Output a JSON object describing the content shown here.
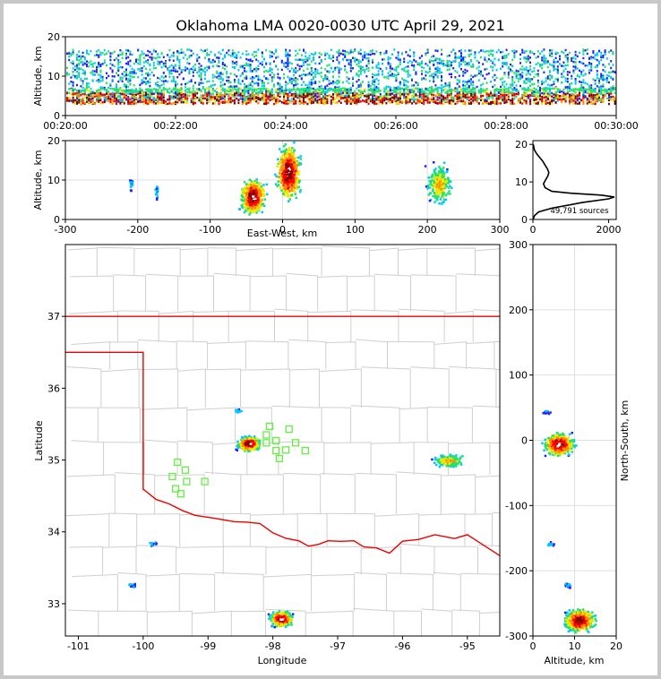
{
  "figure": {
    "title": "Oklahoma LMA 0020-0030 UTC April 29, 2021"
  },
  "chart_data": [
    {
      "id": "time_altitude",
      "type": "heatmap",
      "xlabel": "",
      "ylabel": "Altitude, km",
      "xticks": [
        "00:20:00",
        "00:22:00",
        "00:24:00",
        "00:26:00",
        "00:28:00",
        "00:30:00"
      ],
      "xlim_minutes": [
        20,
        30
      ],
      "ylim": [
        0,
        20
      ],
      "yticks": [
        0,
        10,
        20
      ],
      "grid": false
    },
    {
      "id": "ew_altitude",
      "type": "heatmap",
      "xlabel": "East-West, km",
      "ylabel": "Altitude, km",
      "xlim": [
        -300,
        300
      ],
      "xticks": [
        -300,
        -200,
        -100,
        0,
        100,
        200,
        300
      ],
      "ylim": [
        0,
        20
      ],
      "yticks": [
        0,
        10,
        20
      ],
      "grid": true,
      "clusters": [
        {
          "x": -210,
          "alt": 9,
          "density": "low"
        },
        {
          "x": -175,
          "alt": 7,
          "density": "low"
        },
        {
          "x": -42,
          "alt": 6,
          "density": "high"
        },
        {
          "x": 7,
          "alt": 12,
          "density": "high"
        },
        {
          "x": 215,
          "alt": 9,
          "density": "medium"
        }
      ]
    },
    {
      "id": "altitude_histogram",
      "type": "line",
      "xlabel": "",
      "ylabel": "",
      "xlim": [
        0,
        2200
      ],
      "xticks": [
        0,
        2000
      ],
      "ylim": [
        0,
        21
      ],
      "yticks": [
        0,
        10,
        20
      ],
      "annotation": "49,791 sources",
      "x": [
        5,
        40,
        150,
        500,
        1300,
        2000,
        2150,
        1800,
        1000,
        500,
        320,
        280,
        330,
        390,
        420,
        380,
        320,
        260,
        180,
        100,
        40,
        10
      ],
      "y": [
        0,
        1,
        2,
        3,
        4.5,
        5.5,
        6,
        6.5,
        7,
        7.5,
        8.5,
        9.5,
        10.5,
        11.5,
        12.5,
        13.5,
        14.5,
        15.5,
        16.5,
        17.5,
        18.5,
        20
      ]
    },
    {
      "id": "plan_view",
      "type": "scatter",
      "xlabel": "Longitude",
      "ylabel": "Latitude",
      "xlim": [
        -101.2,
        -94.5
      ],
      "ylim": [
        32.55,
        38
      ],
      "xticks": [
        -101,
        -100,
        -99,
        -98,
        -97,
        -96,
        -95
      ],
      "yticks": [
        33,
        34,
        35,
        36,
        37
      ],
      "stations": [
        [
          -98.05,
          35.47
        ],
        [
          -97.75,
          35.43
        ],
        [
          -98.1,
          35.35
        ],
        [
          -97.95,
          35.27
        ],
        [
          -97.65,
          35.24
        ],
        [
          -98.1,
          35.24
        ],
        [
          -97.95,
          35.13
        ],
        [
          -97.8,
          35.14
        ],
        [
          -97.5,
          35.13
        ],
        [
          -97.9,
          35.02
        ],
        [
          -99.47,
          34.97
        ],
        [
          -99.35,
          34.86
        ],
        [
          -99.55,
          34.77
        ],
        [
          -99.33,
          34.7
        ],
        [
          -99.05,
          34.7
        ],
        [
          -99.5,
          34.6
        ],
        [
          -99.42,
          34.53
        ]
      ],
      "station_color": "#66ee44",
      "state_border_color": "#ee0000",
      "clusters": [
        {
          "lon": -98.38,
          "lat": 35.24,
          "density": "high"
        },
        {
          "lon": -97.88,
          "lat": 32.8,
          "density": "high"
        },
        {
          "lon": -95.3,
          "lat": 35.0,
          "density": "medium"
        },
        {
          "lon": -98.55,
          "lat": 35.7,
          "density": "low"
        },
        {
          "lon": -99.85,
          "lat": 33.85,
          "density": "low"
        },
        {
          "lon": -100.2,
          "lat": 33.27,
          "density": "low"
        }
      ]
    },
    {
      "id": "ns_altitude",
      "type": "heatmap",
      "xlabel": "Altitude, km",
      "ylabel": "North-South, km",
      "xlim": [
        0,
        20
      ],
      "xticks": [
        0,
        10,
        20
      ],
      "ylim": [
        -300,
        300
      ],
      "yticks": [
        -300,
        -200,
        -100,
        0,
        100,
        200,
        300
      ],
      "grid": true,
      "clusters": [
        {
          "alt": 6,
          "ns": -5,
          "density": "high"
        },
        {
          "alt": 11,
          "ns": -275,
          "density": "high"
        },
        {
          "alt": 3,
          "ns": 45,
          "density": "low"
        },
        {
          "alt": 4,
          "ns": -158,
          "density": "low"
        },
        {
          "alt": 8,
          "ns": -222,
          "density": "low"
        }
      ]
    }
  ],
  "colors": {
    "density_scale": [
      "#2020ff",
      "#00c8ff",
      "#20e070",
      "#e8e800",
      "#ff8800",
      "#ff0000",
      "#800000",
      "#ffffff"
    ]
  }
}
